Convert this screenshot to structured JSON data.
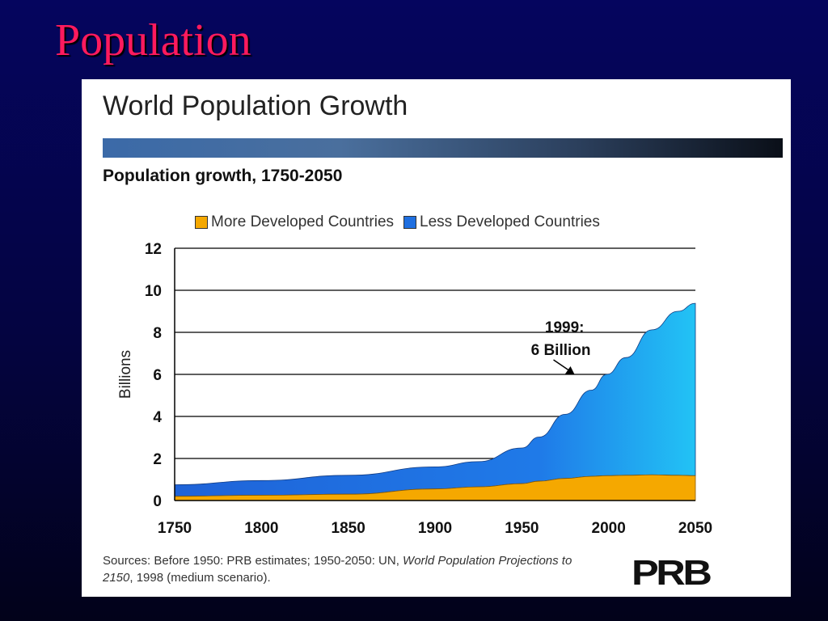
{
  "slide": {
    "title": "Population"
  },
  "figure": {
    "title": "World Population Growth",
    "subtitle": "Population growth, 1750-2050",
    "sources_prefix": "Sources: Before 1950: PRB estimates; 1950-2050: UN, ",
    "sources_italic_1": "World Population Projections to 2150",
    "sources_suffix": ", 1998 (medium scenario).",
    "logo_text": "PRB"
  },
  "chart_data": {
    "type": "area",
    "stacked": true,
    "ylabel": "Billions",
    "xlabel": "",
    "ylim": [
      0,
      12
    ],
    "xlim": [
      1750,
      2050
    ],
    "yticks": [
      0,
      2,
      4,
      6,
      8,
      10,
      12
    ],
    "xticks": [
      1750,
      1800,
      1850,
      1900,
      1950,
      2000,
      2050
    ],
    "grid": true,
    "legend_placement": "top",
    "x": [
      1750,
      1800,
      1850,
      1900,
      1925,
      1950,
      1960,
      1975,
      1990,
      1999,
      2010,
      2025,
      2040,
      2050
    ],
    "series": [
      {
        "name": "More Developed Countries",
        "color": "#f5a800",
        "values": [
          0.2,
          0.25,
          0.3,
          0.55,
          0.65,
          0.8,
          0.92,
          1.05,
          1.15,
          1.18,
          1.2,
          1.22,
          1.2,
          1.18
        ]
      },
      {
        "name": "Less Developed Countries",
        "color": "#1f6fe0",
        "values": [
          0.55,
          0.7,
          0.9,
          1.05,
          1.2,
          1.7,
          2.1,
          3.05,
          4.1,
          4.82,
          5.6,
          6.9,
          7.8,
          8.2
        ]
      }
    ],
    "annotations": [
      {
        "text_line1": "1999:",
        "text_line2": "6 Billion",
        "x": 1999,
        "y": 6.0
      }
    ]
  }
}
